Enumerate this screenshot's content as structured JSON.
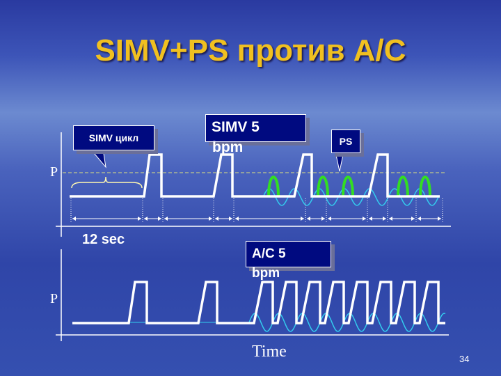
{
  "title": "SIMV+PS против A/C",
  "top": {
    "callout_cycle": "SIMV цикл",
    "callout_rate": "SIMV  5",
    "rate_unit": "bpm",
    "callout_ps": "PS",
    "axis_label": "P",
    "interval_label": "12 sec"
  },
  "bottom": {
    "callout_rate": "A/C  5",
    "rate_unit": "bpm",
    "axis_label": "P",
    "x_label": "Time"
  },
  "page_number": "34",
  "colors": {
    "title": "#f0c020",
    "callout_bg": "#000a80",
    "ps_wave": "#33dd22",
    "patient_wave": "#33ccee",
    "ventilator_wave": "#ffffff"
  }
}
